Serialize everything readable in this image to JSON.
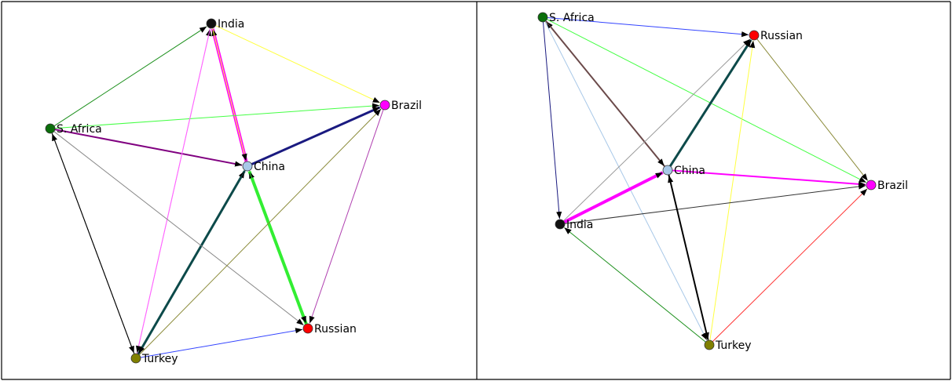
{
  "panels": [
    {
      "id": "left",
      "nodes": [
        {
          "id": "india",
          "label": "India",
          "color": "#111111"
        },
        {
          "id": "brazil",
          "label": "Brazil",
          "color": "#ff00ff"
        },
        {
          "id": "safrica",
          "label": "S. Africa",
          "color": "#0a6e0a"
        },
        {
          "id": "china",
          "label": "China",
          "color": "#a8c8e8"
        },
        {
          "id": "russian",
          "label": "Russian",
          "color": "#ff0000"
        },
        {
          "id": "turkey",
          "label": "Turkey",
          "color": "#808000"
        }
      ],
      "edges": [
        {
          "from": "china",
          "to": "india",
          "color": "#ff00ff",
          "width": 4
        },
        {
          "from": "india",
          "to": "china",
          "color": "#ffff40",
          "width": 1
        },
        {
          "from": "india",
          "to": "brazil",
          "color": "#ffff40",
          "width": 1
        },
        {
          "from": "safrica",
          "to": "india",
          "color": "#1b8f1b",
          "width": 1
        },
        {
          "from": "safrica",
          "to": "brazil",
          "color": "#44ff44",
          "width": 1
        },
        {
          "from": "safrica",
          "to": "china",
          "color": "#800080",
          "width": 2
        },
        {
          "from": "china",
          "to": "brazil",
          "color": "#1a1a80",
          "width": 3
        },
        {
          "from": "turkey",
          "to": "china",
          "color": "#0d4a4a",
          "width": 3
        },
        {
          "from": "china",
          "to": "turkey",
          "color": "#0d4a4a",
          "width": 1
        },
        {
          "from": "russian",
          "to": "china",
          "color": "#33ee33",
          "width": 4
        },
        {
          "from": "china",
          "to": "russian",
          "color": "#33ee33",
          "width": 1
        },
        {
          "from": "turkey",
          "to": "india",
          "color": "#ff66ff",
          "width": 1
        },
        {
          "from": "india",
          "to": "turkey",
          "color": "#ff66ff",
          "width": 1
        },
        {
          "from": "turkey",
          "to": "safrica",
          "color": "#000000",
          "width": 1
        },
        {
          "from": "safrica",
          "to": "turkey",
          "color": "#000000",
          "width": 1
        },
        {
          "from": "safrica",
          "to": "russian",
          "color": "#888888",
          "width": 1
        },
        {
          "from": "turkey",
          "to": "russian",
          "color": "#3344ff",
          "width": 1
        },
        {
          "from": "turkey",
          "to": "brazil",
          "color": "#8b8b3a",
          "width": 1
        },
        {
          "from": "brazil",
          "to": "russian",
          "color": "#b040b0",
          "width": 1
        }
      ]
    },
    {
      "id": "right",
      "nodes": [
        {
          "id": "safrica",
          "label": "S. Africa",
          "color": "#0a6e0a"
        },
        {
          "id": "russian",
          "label": "Russian",
          "color": "#ff0000"
        },
        {
          "id": "china",
          "label": "China",
          "color": "#a8c8e8"
        },
        {
          "id": "brazil",
          "label": "Brazil",
          "color": "#ff00ff"
        },
        {
          "id": "india",
          "label": "India",
          "color": "#111111"
        },
        {
          "id": "turkey",
          "label": "Turkey",
          "color": "#808000"
        }
      ],
      "edges": [
        {
          "from": "safrica",
          "to": "russian",
          "color": "#3344ff",
          "width": 1
        },
        {
          "from": "china",
          "to": "safrica",
          "color": "#6b4a4a",
          "width": 2
        },
        {
          "from": "safrica",
          "to": "china",
          "color": "#6b4a4a",
          "width": 1
        },
        {
          "from": "safrica",
          "to": "india",
          "color": "#1a1a80",
          "width": 1
        },
        {
          "from": "safrica",
          "to": "turkey",
          "color": "#a8c8e8",
          "width": 1
        },
        {
          "from": "safrica",
          "to": "brazil",
          "color": "#44ff44",
          "width": 1
        },
        {
          "from": "china",
          "to": "russian",
          "color": "#0d4a4a",
          "width": 3
        },
        {
          "from": "india",
          "to": "russian",
          "color": "#999999",
          "width": 1
        },
        {
          "from": "turkey",
          "to": "russian",
          "color": "#ffff40",
          "width": 1
        },
        {
          "from": "russian",
          "to": "brazil",
          "color": "#8b8b3a",
          "width": 1
        },
        {
          "from": "india",
          "to": "china",
          "color": "#ff00ff",
          "width": 4
        },
        {
          "from": "china",
          "to": "brazil",
          "color": "#ff00ff",
          "width": 2
        },
        {
          "from": "india",
          "to": "brazil",
          "color": "#333333",
          "width": 1
        },
        {
          "from": "china",
          "to": "turkey",
          "color": "#000000",
          "width": 2
        },
        {
          "from": "turkey",
          "to": "china",
          "color": "#000000",
          "width": 1
        },
        {
          "from": "turkey",
          "to": "india",
          "color": "#1b8f1b",
          "width": 1
        },
        {
          "from": "turkey",
          "to": "brazil",
          "color": "#ff3333",
          "width": 1
        }
      ]
    }
  ]
}
